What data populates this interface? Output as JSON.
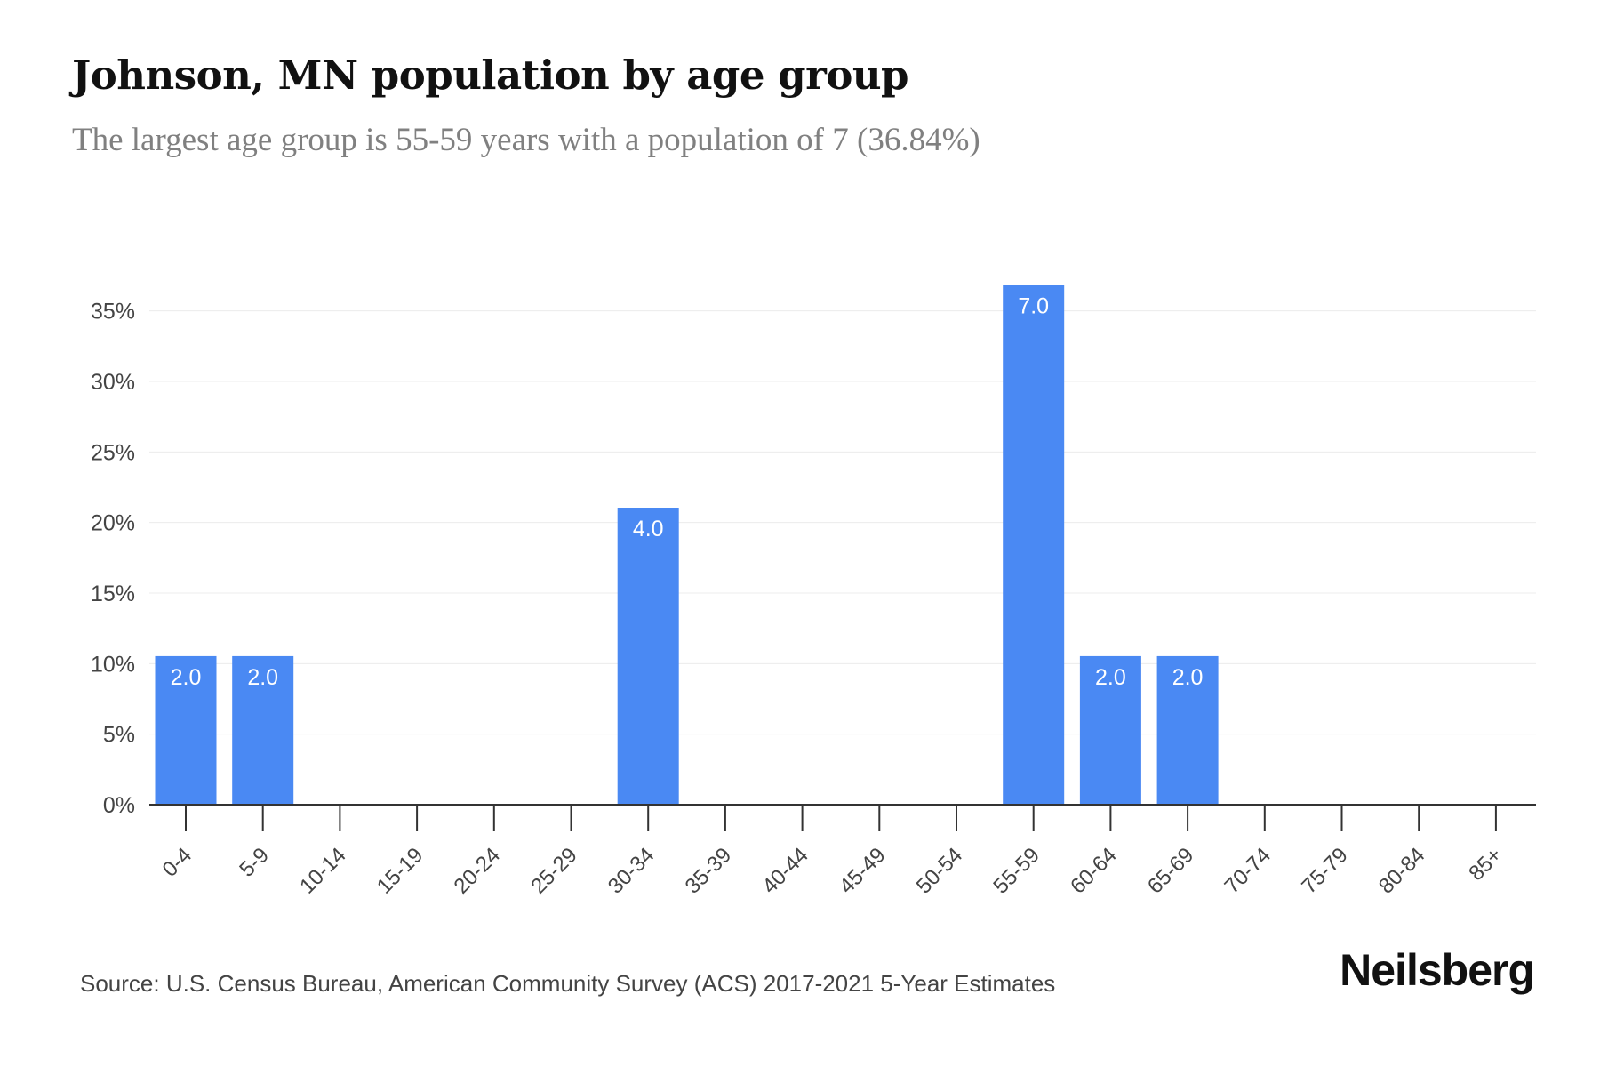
{
  "header": {
    "title": "Johnson, MN population by age group",
    "subtitle": "The largest age group is 55-59 years with a population of 7 (36.84%)"
  },
  "footer": {
    "source": "Source: U.S. Census Bureau, American Community Survey (ACS) 2017-2021 5-Year Estimates",
    "brand": "Neilsberg"
  },
  "chart_data": {
    "type": "bar",
    "title": "Johnson, MN population by age group",
    "subtitle": "The largest age group is 55-59 years with a population of 7 (36.84%)",
    "xlabel": "",
    "ylabel": "",
    "categories": [
      "0-4",
      "5-9",
      "10-14",
      "15-19",
      "20-24",
      "25-29",
      "30-34",
      "35-39",
      "40-44",
      "45-49",
      "50-54",
      "55-59",
      "60-64",
      "65-69",
      "70-74",
      "75-79",
      "80-84",
      "85+"
    ],
    "percent_values": [
      10.53,
      10.53,
      0,
      0,
      0,
      0,
      21.05,
      0,
      0,
      0,
      0,
      36.84,
      10.53,
      10.53,
      0,
      0,
      0,
      0
    ],
    "population_values": [
      2,
      2,
      0,
      0,
      0,
      0,
      4,
      0,
      0,
      0,
      0,
      7,
      2,
      2,
      0,
      0,
      0,
      0
    ],
    "ylim": [
      0,
      37.5
    ],
    "yticks": [
      "0%",
      "5%",
      "10%",
      "15%",
      "20%",
      "25%",
      "30%",
      "35%"
    ],
    "ytick_values": [
      0,
      5,
      10,
      15,
      20,
      25,
      30,
      35
    ],
    "grid": true,
    "bar_color": "#4a89f3",
    "label_color": "#ffffff"
  }
}
